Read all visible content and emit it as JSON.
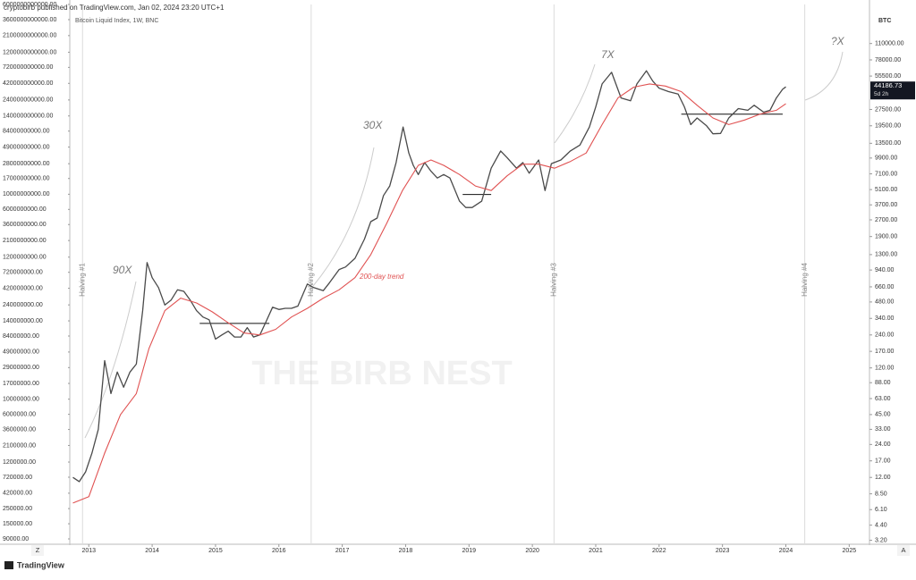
{
  "header": {
    "byline": "cryptobirb published on TradingView.com, Jan 02, 2024 23:20 UTC+1",
    "symbol": "Bitcoin Liquid Index, 1W, BNC",
    "axis_unit": "BTC",
    "countdown": "5d 2h",
    "watermark": "THE BIRB NEST",
    "brand": "TradingView",
    "left_button": "Z",
    "right_button": "A"
  },
  "chart_data": {
    "type": "line",
    "log_scale": true,
    "xlim": [
      2012.7,
      2025.32
    ],
    "xticks": [
      2013,
      2014,
      2015,
      2016,
      2017,
      2018,
      2019,
      2020,
      2021,
      2022,
      2023,
      2024,
      2025
    ],
    "ylim": [
      3,
      250000
    ],
    "yticks": [
      {
        "value": 110000,
        "label": "110000.00"
      },
      {
        "value": 78000,
        "label": "78000.00"
      },
      {
        "value": 55500,
        "label": "55500.00"
      },
      {
        "value": 27500,
        "label": "27500.00"
      },
      {
        "value": 19500,
        "label": "19500.00"
      },
      {
        "value": 13500,
        "label": "13500.00"
      },
      {
        "value": 9900,
        "label": "9900.00"
      },
      {
        "value": 7100,
        "label": "7100.00"
      },
      {
        "value": 5100,
        "label": "5100.00"
      },
      {
        "value": 3700,
        "label": "3700.00"
      },
      {
        "value": 2700,
        "label": "2700.00"
      },
      {
        "value": 1900,
        "label": "1900.00"
      },
      {
        "value": 1300,
        "label": "1300.00"
      },
      {
        "value": 940,
        "label": "940.00"
      },
      {
        "value": 660,
        "label": "660.00"
      },
      {
        "value": 480,
        "label": "480.00"
      },
      {
        "value": 340,
        "label": "340.00"
      },
      {
        "value": 240,
        "label": "240.00"
      },
      {
        "value": 170,
        "label": "170.00"
      },
      {
        "value": 120,
        "label": "120.00"
      },
      {
        "value": 88,
        "label": "88.00"
      },
      {
        "value": 63,
        "label": "63.00"
      },
      {
        "value": 45,
        "label": "45.00"
      },
      {
        "value": 33,
        "label": "33.00"
      },
      {
        "value": 24,
        "label": "24.00"
      },
      {
        "value": 17,
        "label": "17.00"
      },
      {
        "value": 12,
        "label": "12.00"
      },
      {
        "value": 8.5,
        "label": "8.50"
      },
      {
        "value": 6.1,
        "label": "6.10"
      },
      {
        "value": 4.4,
        "label": "4.40"
      },
      {
        "value": 3.2,
        "label": "3.20"
      }
    ],
    "y2lim": [
      77450,
      6000000000000
    ],
    "y2ticks": [
      {
        "value": 6000000000000,
        "label": "6000000000000.00"
      },
      {
        "value": 3600000000000,
        "label": "3600000000000.00"
      },
      {
        "value": 2100000000000,
        "label": "2100000000000.00"
      },
      {
        "value": 1200000000000,
        "label": "1200000000000.00"
      },
      {
        "value": 720000000000,
        "label": "720000000000.00"
      },
      {
        "value": 420000000000,
        "label": "420000000000.00"
      },
      {
        "value": 240000000000,
        "label": "240000000000.00"
      },
      {
        "value": 140000000000,
        "label": "140000000000.00"
      },
      {
        "value": 84000000000,
        "label": "84000000000.00"
      },
      {
        "value": 49000000000,
        "label": "49000000000.00"
      },
      {
        "value": 28000000000,
        "label": "28000000000.00"
      },
      {
        "value": 17000000000,
        "label": "17000000000.00"
      },
      {
        "value": 10000000000,
        "label": "10000000000.00"
      },
      {
        "value": 6000000000,
        "label": "6000000000.00"
      },
      {
        "value": 3600000000,
        "label": "3600000000.00"
      },
      {
        "value": 2100000000,
        "label": "2100000000.00"
      },
      {
        "value": 1200000000,
        "label": "1200000000.00"
      },
      {
        "value": 720000000,
        "label": "720000000.00"
      },
      {
        "value": 420000000,
        "label": "420000000.00"
      },
      {
        "value": 240000000,
        "label": "240000000.00"
      },
      {
        "value": 140000000,
        "label": "140000000.00"
      },
      {
        "value": 84000000,
        "label": "84000000.00"
      },
      {
        "value": 49000000,
        "label": "49000000.00"
      },
      {
        "value": 29000000,
        "label": "29000000.00"
      },
      {
        "value": 17000000,
        "label": "17000000.00"
      },
      {
        "value": 10000000,
        "label": "10000000.00"
      },
      {
        "value": 6000000,
        "label": "6000000.00"
      },
      {
        "value": 3600000,
        "label": "3600000.00"
      },
      {
        "value": 2100000,
        "label": "2100000.00"
      },
      {
        "value": 1200000,
        "label": "1200000.00"
      },
      {
        "value": 720000,
        "label": "720000.00"
      },
      {
        "value": 420000,
        "label": "420000.00"
      },
      {
        "value": 250000,
        "label": "250000.00"
      },
      {
        "value": 150000,
        "label": "150000.00"
      },
      {
        "value": 90000,
        "label": "90000.00"
      }
    ],
    "series": [
      {
        "color": "#4a4a4a",
        "x": [
          2012.75,
          2012.85,
          2012.95,
          2013.05,
          2013.15,
          2013.25,
          2013.3,
          2013.35,
          2013.45,
          2013.55,
          2013.65,
          2013.75,
          2013.85,
          2013.92,
          2014.0,
          2014.1,
          2014.2,
          2014.3,
          2014.4,
          2014.5,
          2014.6,
          2014.7,
          2014.8,
          2014.9,
          2015.0,
          2015.1,
          2015.2,
          2015.3,
          2015.4,
          2015.5,
          2015.6,
          2015.7,
          2015.8,
          2015.9,
          2016.0,
          2016.1,
          2016.2,
          2016.3,
          2016.45,
          2016.55,
          2016.7,
          2016.8,
          2016.95,
          2017.05,
          2017.2,
          2017.35,
          2017.45,
          2017.55,
          2017.65,
          2017.75,
          2017.85,
          2017.96,
          2018.05,
          2018.12,
          2018.2,
          2018.3,
          2018.4,
          2018.5,
          2018.6,
          2018.7,
          2018.85,
          2018.95,
          2019.05,
          2019.2,
          2019.35,
          2019.5,
          2019.6,
          2019.75,
          2019.85,
          2019.95,
          2020.1,
          2020.2,
          2020.3,
          2020.45,
          2020.6,
          2020.75,
          2020.9,
          2021.0,
          2021.1,
          2021.25,
          2021.4,
          2021.55,
          2021.65,
          2021.8,
          2021.9,
          2022.0,
          2022.15,
          2022.3,
          2022.4,
          2022.5,
          2022.6,
          2022.75,
          2022.85,
          2022.97,
          2023.1,
          2023.25,
          2023.4,
          2023.5,
          2023.65,
          2023.75,
          2023.85,
          2023.95,
          2024.0
        ],
        "values": [
          12,
          11,
          13.5,
          20,
          33,
          140,
          100,
          70,
          110,
          80,
          110,
          130,
          400,
          1100,
          800,
          650,
          450,
          500,
          620,
          600,
          500,
          400,
          350,
          330,
          220,
          240,
          260,
          230,
          230,
          280,
          230,
          240,
          320,
          430,
          410,
          420,
          420,
          440,
          700,
          650,
          610,
          720,
          950,
          1000,
          1200,
          1800,
          2600,
          2800,
          4500,
          5500,
          9000,
          19000,
          11000,
          8500,
          7000,
          9000,
          7500,
          6500,
          7000,
          6500,
          4000,
          3500,
          3500,
          4000,
          8000,
          11500,
          10000,
          8000,
          9000,
          7200,
          9500,
          5000,
          8800,
          9500,
          11500,
          13000,
          19000,
          29000,
          47000,
          60000,
          35000,
          33000,
          47000,
          62000,
          50000,
          43000,
          40000,
          38000,
          29000,
          20000,
          23000,
          19500,
          16500,
          16600,
          23000,
          28000,
          27000,
          30000,
          26000,
          27000,
          35000,
          42000,
          44186.73
        ]
      },
      {
        "name": "200-day trend",
        "color": "#e05252",
        "x": [
          2012.75,
          2013.0,
          2013.25,
          2013.5,
          2013.75,
          2013.95,
          2014.2,
          2014.45,
          2014.7,
          2014.95,
          2015.2,
          2015.45,
          2015.7,
          2015.95,
          2016.2,
          2016.45,
          2016.7,
          2016.95,
          2017.2,
          2017.45,
          2017.7,
          2017.95,
          2018.2,
          2018.4,
          2018.6,
          2018.85,
          2019.1,
          2019.35,
          2019.6,
          2019.85,
          2020.1,
          2020.35,
          2020.6,
          2020.85,
          2021.1,
          2021.35,
          2021.6,
          2021.85,
          2022.1,
          2022.35,
          2022.6,
          2022.85,
          2023.1,
          2023.35,
          2023.6,
          2023.85,
          2024.0
        ],
        "values": [
          7,
          8,
          20,
          45,
          70,
          180,
          400,
          520,
          470,
          390,
          310,
          250,
          240,
          270,
          350,
          420,
          520,
          620,
          800,
          1300,
          2500,
          5000,
          8500,
          9500,
          8500,
          7000,
          5500,
          5000,
          6800,
          8700,
          8700,
          8000,
          9200,
          11000,
          20000,
          35000,
          44000,
          47000,
          45000,
          40000,
          30000,
          23000,
          20000,
          22000,
          25000,
          27000,
          31000
        ]
      }
    ],
    "levels": [
      {
        "x": [
          2014.75,
          2015.85
        ],
        "value": 306
      },
      {
        "x": [
          2018.9,
          2019.35
        ],
        "value": 4600
      },
      {
        "x": [
          2022.35,
          2023.95
        ],
        "value": 24900
      }
    ],
    "halvings": [
      {
        "label": "Halving #1",
        "x": 2012.9
      },
      {
        "label": "Halving #2",
        "x": 2016.51
      },
      {
        "label": "Halving #3",
        "x": 2020.34
      },
      {
        "label": "Halving #4",
        "x": 2024.3
      }
    ],
    "annotations": [
      "90X",
      "30X",
      "7X",
      "?X"
    ]
  }
}
